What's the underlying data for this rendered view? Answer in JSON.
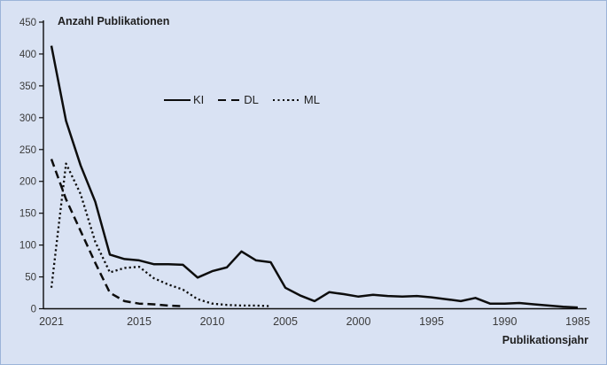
{
  "frame": {
    "background_color": "#d9e2f3",
    "border_color": "#9cb4d8",
    "line_color": "#0d0d0d",
    "tick_text_color": "#3a3a3a"
  },
  "chart_data": {
    "type": "line",
    "y_axis_label": "Anzahl Publikationen",
    "x_axis_label": "Publikationsjahr",
    "x_reversed": true,
    "ylim": [
      0,
      450
    ],
    "y_ticks": [
      450,
      400,
      350,
      300,
      250,
      200,
      150,
      100,
      50,
      0
    ],
    "x_tick_labels": [
      2021,
      2015,
      2010,
      2005,
      2000,
      1995,
      1990,
      1985
    ],
    "years": [
      2021,
      2020,
      2019,
      2018,
      2017,
      2016,
      2015,
      2014,
      2013,
      2012,
      2011,
      2010,
      2009,
      2008,
      2007,
      2006,
      2005,
      2004,
      2003,
      2002,
      2001,
      2000,
      1999,
      1998,
      1997,
      1996,
      1995,
      1994,
      1993,
      1992,
      1991,
      1990,
      1989,
      1988,
      1987,
      1986,
      1985
    ],
    "legend_position": "inside-top-left",
    "grid": false,
    "series": [
      {
        "name": "KI",
        "style": "solid",
        "values": [
          413,
          295,
          225,
          168,
          85,
          78,
          76,
          70,
          70,
          69,
          49,
          59,
          65,
          90,
          76,
          73,
          33,
          21,
          12,
          26,
          23,
          19,
          22,
          20,
          19,
          20,
          18,
          15,
          12,
          17,
          8,
          8,
          9,
          7,
          5,
          3,
          2
        ]
      },
      {
        "name": "DL",
        "style": "dashed",
        "values": [
          235,
          172,
          122,
          72,
          25,
          12,
          8,
          7,
          5,
          4,
          null,
          null,
          null,
          null,
          null,
          null,
          null,
          null,
          null,
          null,
          null,
          null,
          null,
          null,
          null,
          null,
          null,
          null,
          null,
          null,
          null,
          null,
          null,
          null,
          null,
          null,
          null
        ]
      },
      {
        "name": "ML",
        "style": "dotted",
        "values": [
          33,
          228,
          180,
          105,
          57,
          64,
          66,
          48,
          38,
          30,
          15,
          8,
          6,
          5,
          5,
          4,
          null,
          null,
          null,
          null,
          null,
          null,
          null,
          null,
          null,
          null,
          null,
          null,
          null,
          null,
          null,
          null,
          null,
          null,
          null,
          null,
          null
        ]
      }
    ]
  }
}
